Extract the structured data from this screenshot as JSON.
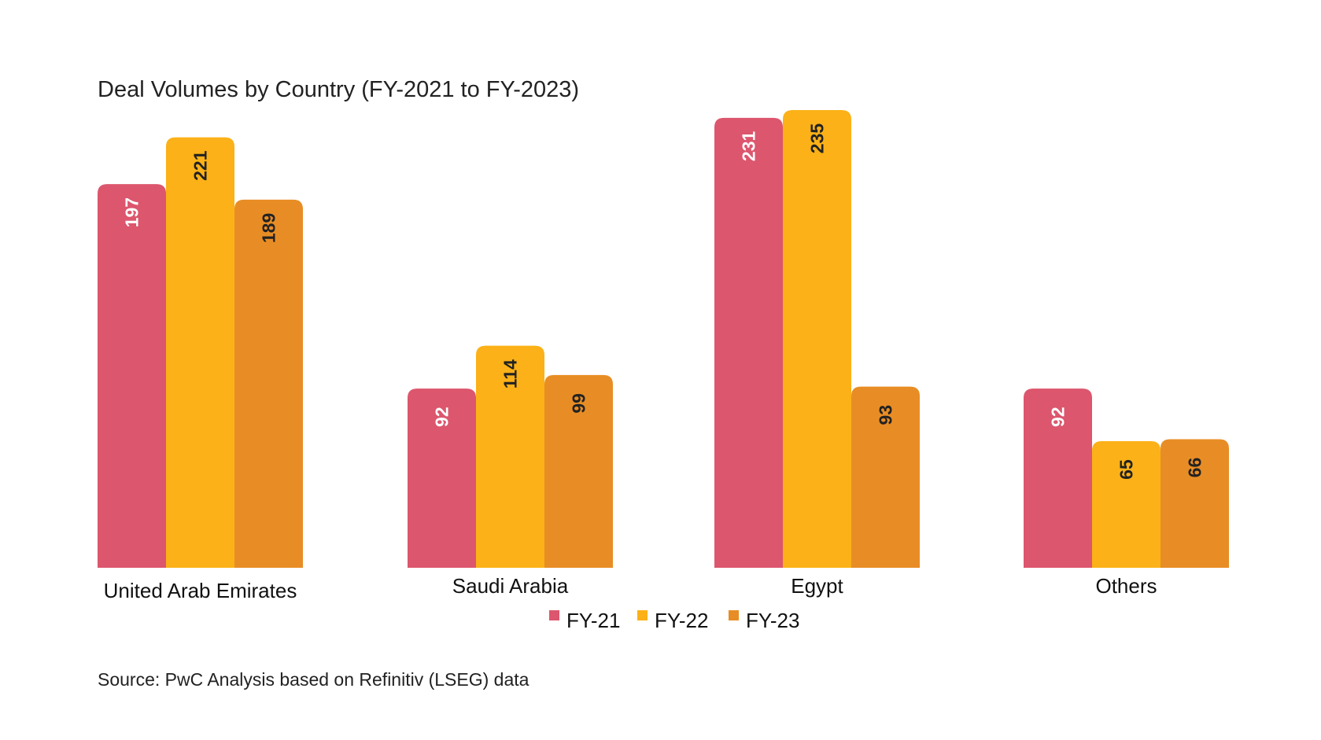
{
  "chart_data": {
    "type": "bar",
    "title": "Deal Volumes by Country (FY-2021 to FY-2023)",
    "categories": [
      "United Arab Emirates",
      "Saudi Arabia",
      "Egypt",
      "Others"
    ],
    "series": [
      {
        "name": "FY-21",
        "color": "#DC566D",
        "label_color": "#ffffff",
        "values": [
          197,
          92,
          231,
          92
        ]
      },
      {
        "name": "FY-22",
        "color": "#FBB117",
        "label_color": "#222222",
        "values": [
          221,
          114,
          235,
          65
        ]
      },
      {
        "name": "FY-23",
        "color": "#E88D25",
        "label_color": "#222222",
        "values": [
          189,
          99,
          93,
          66
        ]
      }
    ],
    "xlabel": "",
    "ylabel": "",
    "ylim": [
      0,
      235
    ],
    "grid": false,
    "legend_position": "bottom-center",
    "source": "Source: PwC Analysis based on Refinitiv (LSEG) data"
  }
}
